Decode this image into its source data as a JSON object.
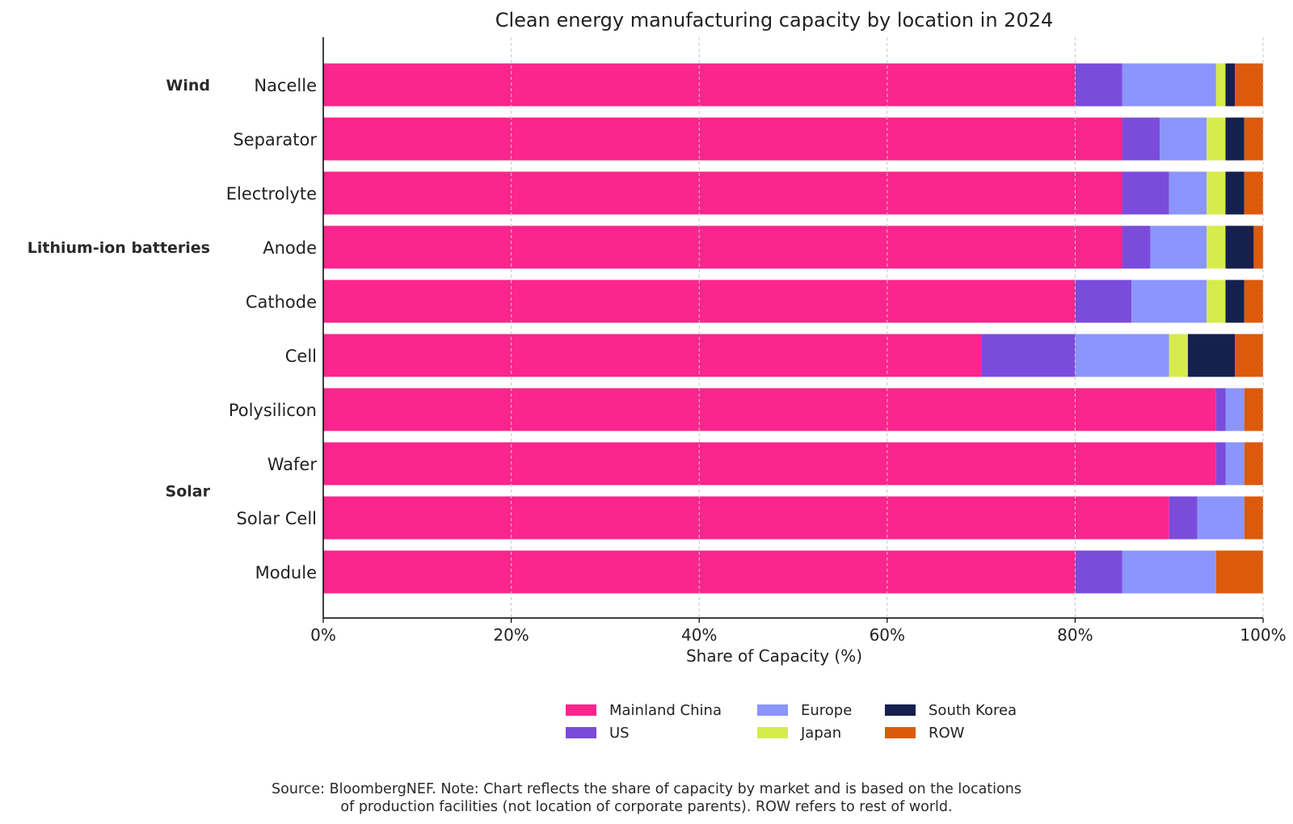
{
  "chart_data": {
    "type": "bar",
    "orientation": "horizontal",
    "stacked": true,
    "title": "Clean energy manufacturing capacity by location in 2024",
    "xlabel": "Share of Capacity (%)",
    "ylabel": "",
    "xlim": [
      0,
      100
    ],
    "xticks": [
      "0%",
      "20%",
      "40%",
      "60%",
      "80%",
      "100%"
    ],
    "grid": true,
    "legend_position": "bottom-center",
    "categories": [
      "Nacelle",
      "Separator",
      "Electrolyte",
      "Anode",
      "Cathode",
      "Cell",
      "Polysilicon",
      "Wafer",
      "Solar Cell",
      "Module"
    ],
    "groups": [
      {
        "label": "Wind",
        "categories": [
          "Nacelle"
        ]
      },
      {
        "label": "Lithium-ion batteries",
        "categories": [
          "Separator",
          "Electrolyte",
          "Anode",
          "Cathode",
          "Cell"
        ]
      },
      {
        "label": "Solar",
        "categories": [
          "Polysilicon",
          "Wafer",
          "Solar Cell",
          "Module"
        ]
      }
    ],
    "series": [
      {
        "name": "Mainland China",
        "color": "#fa258d",
        "values": [
          80,
          85,
          85,
          85,
          80,
          70,
          95,
          95,
          90,
          80
        ]
      },
      {
        "name": "US",
        "color": "#7b4bdb",
        "values": [
          5,
          4,
          5,
          3,
          6,
          10,
          1,
          1,
          3,
          5
        ]
      },
      {
        "name": "Europe",
        "color": "#8b95fb",
        "values": [
          10,
          5,
          4,
          6,
          8,
          10,
          2,
          2,
          5,
          10
        ]
      },
      {
        "name": "Japan",
        "color": "#d6ec4b",
        "values": [
          1,
          2,
          2,
          2,
          2,
          2,
          0,
          0,
          0,
          0
        ]
      },
      {
        "name": "South Korea",
        "color": "#15204e",
        "values": [
          1,
          2,
          2,
          3,
          2,
          5,
          0,
          0,
          0,
          0
        ]
      },
      {
        "name": "ROW",
        "color": "#dc5a0a",
        "values": [
          3,
          2,
          2,
          1,
          2,
          3,
          2,
          2,
          2,
          5
        ]
      }
    ]
  },
  "source_note": [
    "Source: BloombergNEF. Note: Chart reflects the share of capacity by market and is based on the locations",
    "of production facilities (not location of corporate parents). ROW refers to rest of world."
  ]
}
